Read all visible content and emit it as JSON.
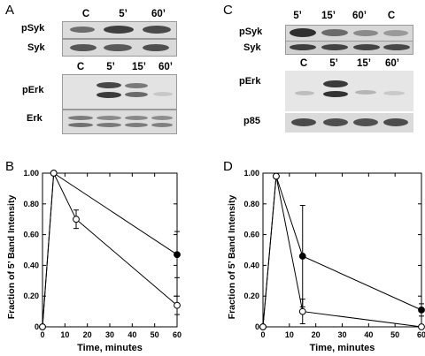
{
  "panels": {
    "A": "A",
    "B": "B",
    "C": "C",
    "D": "D"
  },
  "panelA": {
    "lanes_top": [
      "C",
      "5’",
      "60’"
    ],
    "lanes_bottom": [
      "C",
      "5’",
      "15’",
      "60’"
    ],
    "rows": [
      "pSyk",
      "Syk",
      "pErk",
      "Erk"
    ]
  },
  "panelC": {
    "lanes_top": [
      "5’",
      "15’",
      "60’",
      "C"
    ],
    "lanes_bottom": [
      "C",
      "5’",
      "15’",
      "60’"
    ],
    "rows": [
      "pSyk",
      "Syk",
      "pErk",
      "p85"
    ]
  },
  "chart_data": [
    {
      "type": "line",
      "panel": "B",
      "xlabel": "Time, minutes",
      "ylabel": "Fraction of 5’ Band Intensity",
      "xlim": [
        0,
        60
      ],
      "ylim": [
        0,
        1.0
      ],
      "xticks": [
        "0",
        "10",
        "20",
        "30",
        "40",
        "50",
        "60"
      ],
      "yticks": [
        "0",
        "0.20",
        "0.40",
        "0.60",
        "0.80",
        "1.00"
      ],
      "series": [
        {
          "marker": "filled",
          "x": [
            0,
            5,
            60
          ],
          "y": [
            0,
            1.0,
            0.47
          ],
          "err": [
            0,
            0,
            0.15
          ]
        },
        {
          "marker": "open",
          "x": [
            0,
            5,
            15,
            60
          ],
          "y": [
            0,
            1.0,
            0.7,
            0.14
          ],
          "err": [
            0,
            0,
            0.06,
            0.06
          ]
        }
      ]
    },
    {
      "type": "line",
      "panel": "D",
      "xlabel": "Time, minutes",
      "ylabel": "Fraction of 5’ Band Intensity",
      "xlim": [
        0,
        60
      ],
      "ylim": [
        0,
        1.0
      ],
      "xticks": [
        "0",
        "10",
        "20",
        "30",
        "40",
        "50",
        "60"
      ],
      "yticks": [
        "0",
        "0.20",
        "0.40",
        "0.60",
        "0.80",
        "1.00"
      ],
      "series": [
        {
          "marker": "filled",
          "x": [
            0,
            5,
            15,
            60
          ],
          "y": [
            0,
            0.98,
            0.46,
            0.11
          ],
          "err": [
            0,
            0,
            0.33,
            0.04
          ]
        },
        {
          "marker": "open",
          "x": [
            0,
            5,
            15,
            60
          ],
          "y": [
            0,
            0.98,
            0.1,
            0.0
          ],
          "err": [
            0,
            0,
            0.08,
            0
          ]
        }
      ]
    }
  ]
}
